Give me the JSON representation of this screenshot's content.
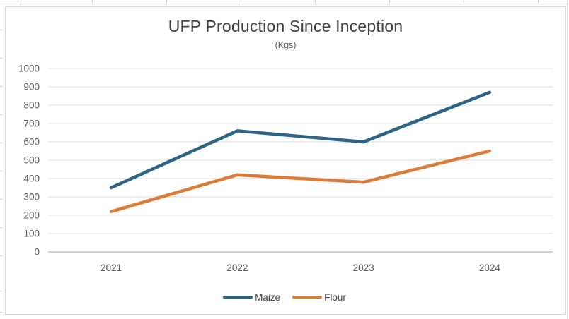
{
  "chart_data": {
    "type": "line",
    "title": "UFP Production Since Inception",
    "subtitle": "(Kgs)",
    "categories": [
      "2021",
      "2022",
      "2023",
      "2024"
    ],
    "series": [
      {
        "name": "Maize",
        "color": "#2d6384",
        "values": [
          350,
          660,
          600,
          870
        ]
      },
      {
        "name": "Flour",
        "color": "#dd7b3b",
        "values": [
          220,
          420,
          380,
          550
        ]
      }
    ],
    "ylim": [
      0,
      1000
    ],
    "ytick_step": 100,
    "grid": "horizontal-only",
    "legend_position": "bottom",
    "title_color": "#404040",
    "axis_label_color": "#595959",
    "gridline_color": "#d9d9d9",
    "axis_line_color": "#bfbfbf"
  }
}
